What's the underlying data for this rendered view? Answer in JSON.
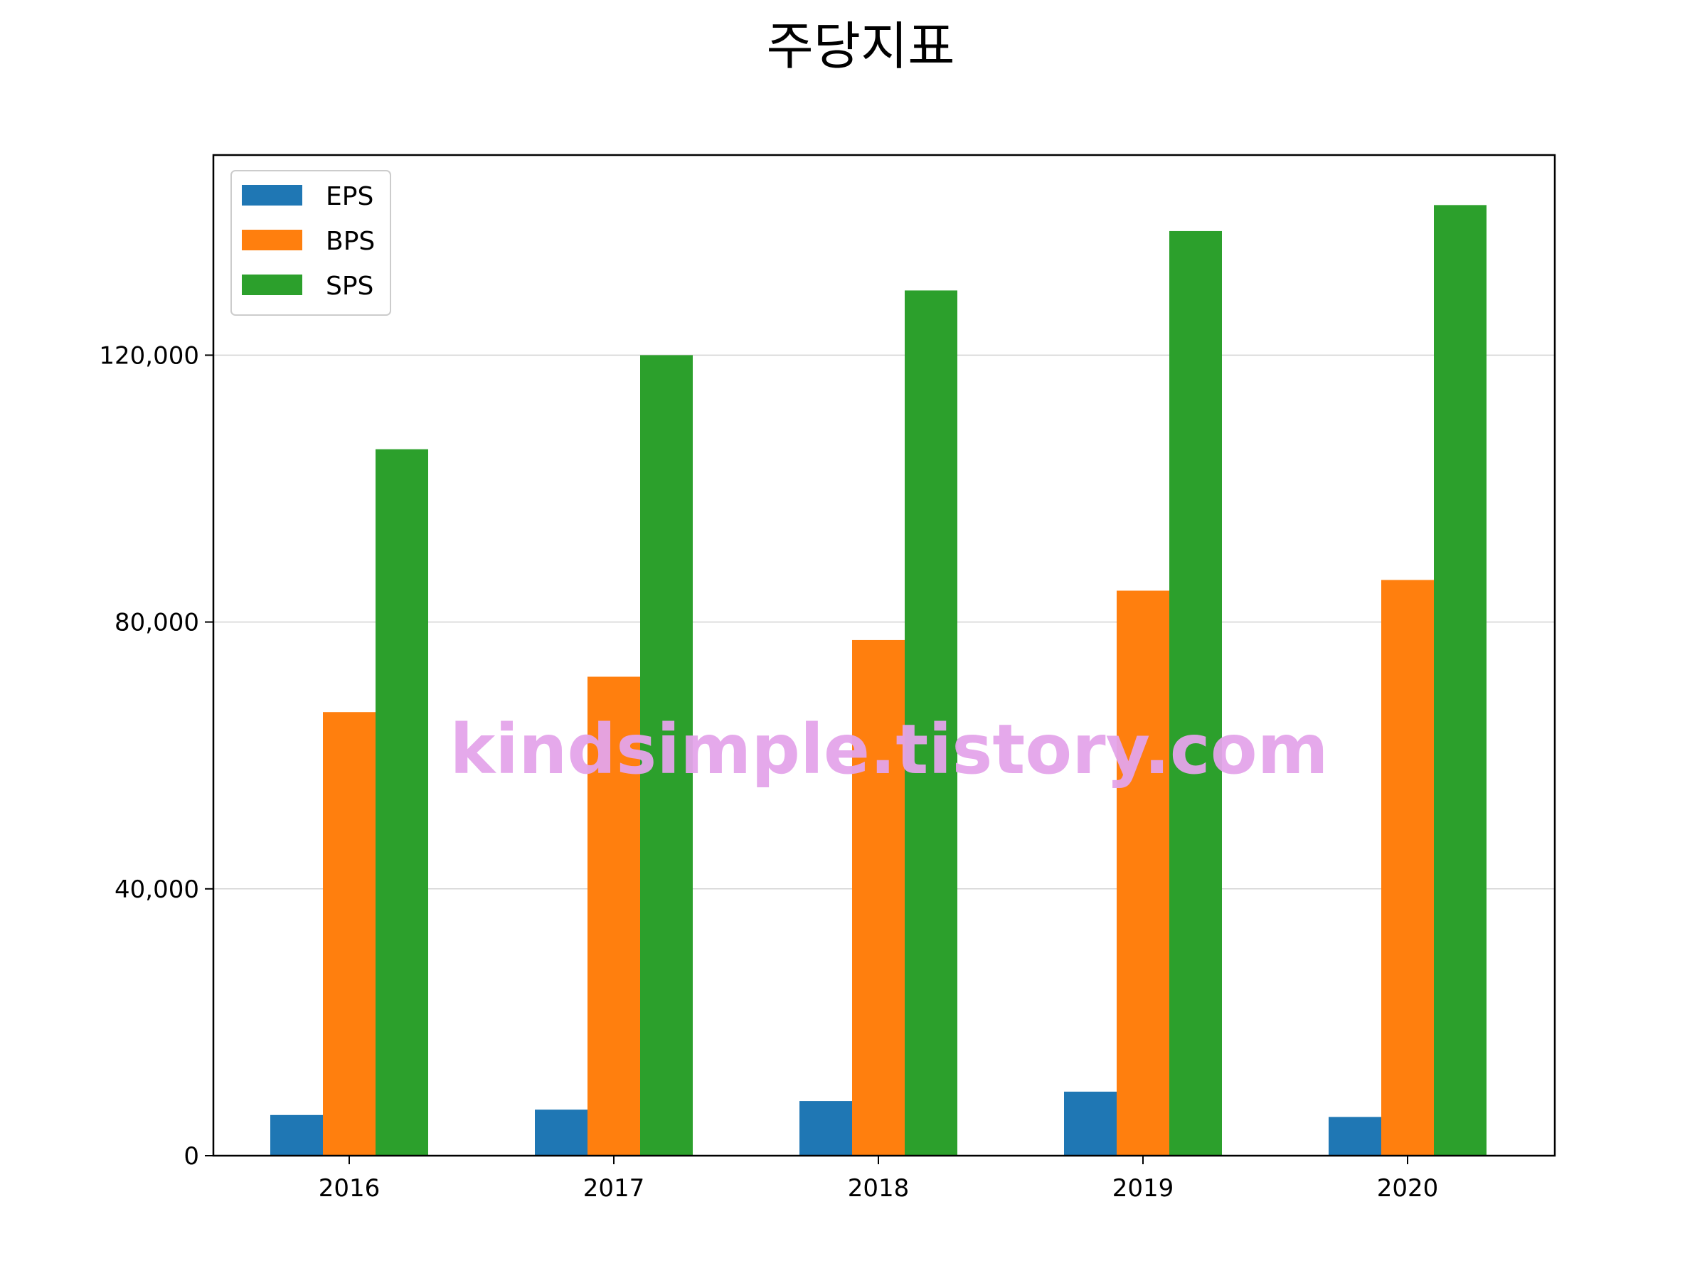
{
  "chart_data": {
    "type": "bar",
    "title": "주당지표",
    "xlabel": "",
    "ylabel": "",
    "categories": [
      "2016",
      "2017",
      "2018",
      "2019",
      "2020"
    ],
    "series": [
      {
        "name": "EPS",
        "color": "#1f77b4",
        "values": [
          6100,
          6900,
          8200,
          9600,
          5800
        ]
      },
      {
        "name": "BPS",
        "color": "#ff7f0e",
        "values": [
          66500,
          71800,
          77300,
          84700,
          86300
        ]
      },
      {
        "name": "SPS",
        "color": "#2ca02c",
        "values": [
          105900,
          120000,
          129700,
          138600,
          142500
        ]
      }
    ],
    "ylim": [
      0,
      150000
    ],
    "yticks": [
      0,
      40000,
      80000,
      120000
    ],
    "ytick_labels": [
      "0",
      "40,000",
      "80,000",
      "120,000"
    ],
    "grid": "y",
    "legend_position": "top-left"
  },
  "watermark": {
    "text": "kindsimple.tistory.com",
    "color": "#e4a4ea"
  }
}
